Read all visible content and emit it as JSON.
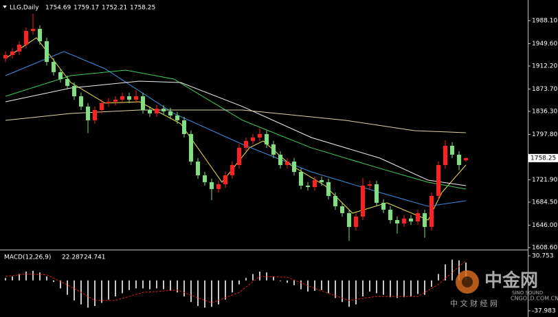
{
  "chart_data": [
    {
      "type": "candlestick",
      "title": "LLG,Daily",
      "up_color": "#ff2020",
      "down_color": "#7ee07e",
      "open": [
        1925.0,
        1930.6,
        1936.4,
        1947.9,
        1970.9,
        1974.3,
        1953.6,
        1919.1,
        1901.9,
        1890.4,
        1878.9,
        1861.6,
        1844.4,
        1821.4,
        1838.6,
        1850.1,
        1852.4,
        1855.9,
        1861.6,
        1855.9,
        1861.6,
        1838.6,
        1832.9,
        1840.9,
        1836.3,
        1829.4,
        1821.4,
        1798.4,
        1752.4,
        1729.4,
        1717.9,
        1706.4,
        1714.4,
        1729.4,
        1746.6,
        1775.4,
        1786.9,
        1792.6,
        1798.4,
        1781.1,
        1763.9,
        1746.6,
        1752.4,
        1735.1,
        1712.1,
        1709.8,
        1721.3,
        1717.9,
        1694.9,
        1677.6,
        1666.1,
        1643.1,
        1660.4,
        1712.1,
        1714.4,
        1683.4,
        1671.9,
        1654.6,
        1648.9,
        1657.1,
        1652.3,
        1666.1,
        1643.1,
        1694.9,
        1746.6,
        1778.8,
        1763.9,
        1754.69
      ],
      "high": [
        1936.6,
        1942.4,
        1953.9,
        1976.9,
        1999.6,
        1980.3,
        1959.6,
        1925.1,
        1907.9,
        1896.4,
        1884.9,
        1867.6,
        1850.4,
        1844.6,
        1856.1,
        1858.4,
        1861.9,
        1867.6,
        1867.6,
        1872.0,
        1867.6,
        1844.6,
        1846.9,
        1846.9,
        1842.3,
        1835.4,
        1827.4,
        1804.4,
        1758.4,
        1735.4,
        1723.9,
        1720.4,
        1735.4,
        1752.6,
        1781.4,
        1792.9,
        1798.6,
        1808.0,
        1804.4,
        1787.1,
        1769.9,
        1758.4,
        1758.4,
        1741.1,
        1718.1,
        1727.3,
        1727.3,
        1723.9,
        1700.9,
        1683.6,
        1672.1,
        1666.4,
        1725.0,
        1720.4,
        1720.4,
        1689.4,
        1677.9,
        1660.6,
        1663.1,
        1663.1,
        1672.1,
        1672.1,
        1700.9,
        1752.6,
        1788.0,
        1784.8,
        1769.9,
        1759.17
      ],
      "low": [
        1919.0,
        1924.6,
        1930.4,
        1941.9,
        1964.9,
        1947.6,
        1913.1,
        1895.9,
        1884.4,
        1872.9,
        1855.6,
        1838.4,
        1800.0,
        1815.4,
        1832.6,
        1844.1,
        1846.4,
        1849.9,
        1849.9,
        1849.9,
        1832.6,
        1826.9,
        1826.9,
        1830.3,
        1823.4,
        1815.4,
        1792.4,
        1746.4,
        1723.4,
        1711.9,
        1688.0,
        1700.4,
        1708.4,
        1723.4,
        1740.6,
        1769.4,
        1780.9,
        1786.6,
        1775.1,
        1757.9,
        1740.6,
        1740.6,
        1729.1,
        1706.1,
        1703.8,
        1703.8,
        1711.9,
        1688.9,
        1671.6,
        1660.1,
        1620.0,
        1637.1,
        1654.4,
        1706.1,
        1677.4,
        1665.9,
        1648.6,
        1632.0,
        1642.9,
        1646.3,
        1646.3,
        1625.0,
        1637.1,
        1688.9,
        1740.6,
        1757.9,
        1738.0,
        1752.21
      ],
      "close": [
        1930.6,
        1936.4,
        1947.9,
        1970.9,
        1974.3,
        1953.6,
        1919.1,
        1901.9,
        1890.4,
        1878.9,
        1861.6,
        1844.4,
        1821.4,
        1838.6,
        1850.1,
        1852.4,
        1855.9,
        1861.6,
        1855.9,
        1861.6,
        1838.6,
        1832.9,
        1840.9,
        1836.3,
        1829.4,
        1821.4,
        1798.4,
        1752.4,
        1729.4,
        1717.9,
        1706.4,
        1714.4,
        1729.4,
        1746.6,
        1775.4,
        1786.9,
        1792.6,
        1798.4,
        1781.1,
        1763.9,
        1746.6,
        1752.4,
        1735.1,
        1712.1,
        1709.8,
        1721.3,
        1717.9,
        1694.9,
        1677.6,
        1666.1,
        1643.1,
        1660.4,
        1712.1,
        1714.4,
        1683.4,
        1671.9,
        1654.6,
        1648.9,
        1657.1,
        1652.3,
        1666.1,
        1643.1,
        1694.9,
        1746.6,
        1778.8,
        1763.9,
        1746.6,
        1758.25
      ],
      "series": [
        {
          "color": "#f2e34c",
          "x": [
            0,
            4.5,
            9.5,
            14.5,
            19.5,
            25.5,
            31.5,
            35.5,
            37.5,
            41.5,
            46.5,
            50.5,
            55.5,
            61.5,
            63.5,
            67
          ],
          "values": [
            1924.9,
            1959.4,
            1884.6,
            1850.1,
            1852.4,
            1815.6,
            1717.9,
            1775.4,
            1786.9,
            1746.6,
            1712.1,
            1666.1,
            1683.4,
            1654.6,
            1700.6,
            1746.6
          ]
        },
        {
          "color": "#3c8fe0",
          "x": [
            0,
            8.5,
            14.5,
            24.5,
            34.5,
            44.5,
            54.5,
            61.5,
            67
          ],
          "values": [
            1896.1,
            1936.4,
            1907.6,
            1832.9,
            1781.1,
            1735.1,
            1700.6,
            1677.6,
            1686.8
          ]
        },
        {
          "color": "#3fcf5a",
          "x": [
            0,
            9.5,
            17.5,
            24.5,
            34.5,
            44.5,
            54.5,
            61.5,
            67
          ],
          "values": [
            1861.6,
            1896.1,
            1905.3,
            1890.4,
            1821.4,
            1775.4,
            1740.9,
            1717.9,
            1706.4
          ]
        },
        {
          "color": "#f0f0f0",
          "x": [
            0,
            9.5,
            19.5,
            25.5,
            34.5,
            44.5,
            54.5,
            61.5,
            67
          ],
          "values": [
            1852.4,
            1875.4,
            1886.9,
            1884.6,
            1844.4,
            1792.6,
            1758.1,
            1721.3,
            1712.1
          ]
        },
        {
          "color": "#e0d3a6",
          "x": [
            0,
            9.5,
            19.5,
            34.5,
            49.5,
            59.5,
            67
          ],
          "values": [
            1821.4,
            1832.9,
            1838.6,
            1838.6,
            1821.4,
            1804.1,
            1800.6
          ]
        }
      ],
      "ylim": [
        1606.3,
        2020.3
      ],
      "yticks": [
        {
          "value": 1988.1,
          "label": "1988.10"
        },
        {
          "value": 1949.6,
          "label": "1949.60"
        },
        {
          "value": 1912.2,
          "label": "1912.20"
        },
        {
          "value": 1873.7,
          "label": "1873.70"
        },
        {
          "value": 1836.3,
          "label": "1836.30"
        },
        {
          "value": 1797.8,
          "label": "1797.80"
        },
        {
          "value": 1721.9,
          "label": "1721.90"
        },
        {
          "value": 1684.5,
          "label": "1684.50"
        },
        {
          "value": 1646.0,
          "label": "1646.00"
        },
        {
          "value": 1608.6,
          "label": "1608.60"
        }
      ]
    },
    {
      "type": "macd",
      "title": "MACD(12,26,9)",
      "color": "#c8c8c8",
      "values": [
        3,
        5,
        8,
        11,
        12,
        10,
        5,
        -2,
        -10,
        -18,
        -25,
        -30,
        -34,
        -32,
        -28,
        -24,
        -20,
        -16,
        -12,
        -10,
        -10,
        -11,
        -10,
        -11,
        -13,
        -15,
        -20,
        -27,
        -32,
        -34,
        -33,
        -30,
        -24,
        -15,
        -5,
        3,
        8,
        11,
        10,
        5,
        0,
        -3,
        -6,
        -11,
        -14,
        -13,
        -12,
        -16,
        -22,
        -27,
        -33,
        -30,
        -20,
        -14,
        -16,
        -18,
        -21,
        -22,
        -21,
        -20,
        -17,
        -18,
        -8,
        8,
        20,
        26,
        25,
        22.287
      ],
      "signal": {
        "color": "#e02020",
        "x": [
          0,
          3,
          6,
          10,
          13,
          16,
          20,
          25,
          30,
          34,
          37,
          41,
          45,
          50,
          54,
          60,
          63,
          67
        ],
        "values": [
          5,
          8,
          7,
          -10,
          -25,
          -25,
          -15,
          -12,
          -28,
          -15,
          5,
          4,
          -10,
          -25,
          -20,
          -20,
          -5,
          24.741
        ]
      },
      "ylim": [
        -43.99,
        35.9
      ],
      "yticks": [
        30.753,
        -37.983
      ]
    }
  ],
  "watermark": {
    "logo": "中金网",
    "brand": "SINO SOUND",
    "site": "CNGOLD.COM.CN",
    "tagline": "中 文 财 经 网"
  }
}
